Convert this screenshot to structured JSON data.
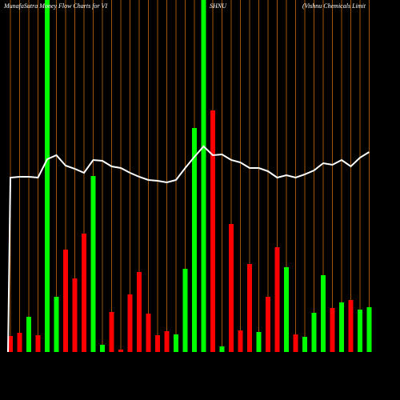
{
  "chart_data": {
    "type": "bar",
    "title_parts": [
      "MunafaSutra  Money Flow  Charts for VI",
      "SHNU",
      "(Vishnu   Chemicals Limit"
    ],
    "ylim": [
      0,
      440
    ],
    "values": [
      20,
      24,
      44,
      21,
      440,
      69,
      128,
      92,
      148,
      220,
      9,
      50,
      3,
      72,
      100,
      48,
      21,
      26,
      22,
      104,
      280,
      440,
      302,
      7,
      160,
      27,
      110,
      25,
      69,
      131,
      106,
      22,
      19,
      49,
      96,
      55,
      62,
      65,
      53,
      56
    ],
    "colors": [
      "#ff0000",
      "#ff0000",
      "#00ff00",
      "#ff0000",
      "#00ff00",
      "#00ff00",
      "#ff0000",
      "#ff0000",
      "#ff0000",
      "#00ff00",
      "#00ff00",
      "#ff0000",
      "#ff0000",
      "#ff0000",
      "#ff0000",
      "#ff0000",
      "#ff0000",
      "#ff0000",
      "#00ff00",
      "#00ff00",
      "#00ff00",
      "#00ff00",
      "#ff0000",
      "#00ff00",
      "#ff0000",
      "#ff0000",
      "#ff0000",
      "#00ff00",
      "#ff0000",
      "#ff0000",
      "#00ff00",
      "#ff0000",
      "#00ff00",
      "#00ff00",
      "#00ff00",
      "#ff0000",
      "#00ff00",
      "#ff0000",
      "#00ff00",
      "#00ff00"
    ],
    "line": {
      "color": "#ffffff",
      "values": [
        218,
        219,
        219,
        218,
        241,
        246,
        233,
        229,
        224,
        240,
        239,
        232,
        230,
        224,
        219,
        215,
        214,
        212,
        215,
        230,
        244,
        257,
        246,
        247,
        240,
        237,
        230,
        230,
        226,
        218,
        221,
        218,
        222,
        227,
        236,
        234,
        240,
        232,
        243,
        250
      ]
    },
    "gridline_color": "#a0550a"
  }
}
